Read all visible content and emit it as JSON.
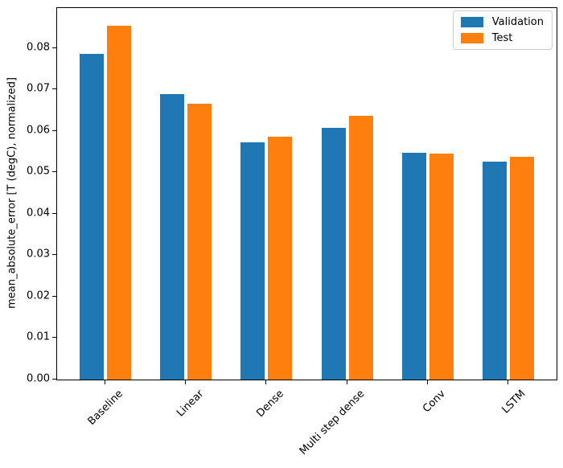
{
  "chart_data": {
    "type": "bar",
    "categories": [
      "Baseline",
      "Linear",
      "Dense",
      "Multi step dense",
      "Conv",
      "LSTM"
    ],
    "series": [
      {
        "name": "Validation",
        "color": "#1f77b4",
        "values": [
          0.0785,
          0.0688,
          0.0573,
          0.0607,
          0.0546,
          0.0525
        ]
      },
      {
        "name": "Test",
        "color": "#ff7f0e",
        "values": [
          0.0853,
          0.0665,
          0.0585,
          0.0636,
          0.0545,
          0.0537
        ]
      }
    ],
    "ylabel": "mean_absolute_error [T (degC), normalized]",
    "ylim": [
      0,
      0.0896
    ],
    "xlim": [
      -0.6,
      5.6
    ],
    "ytick_values": [
      0.0,
      0.01,
      0.02,
      0.03,
      0.04,
      0.05,
      0.06,
      0.07,
      0.08
    ],
    "ytick_labels": [
      "0.00",
      "0.01",
      "0.02",
      "0.03",
      "0.04",
      "0.05",
      "0.06",
      "0.07",
      "0.08"
    ],
    "bar_width": 0.3,
    "bar_offset": 0.17,
    "xtick_rotation": 45,
    "grid": false,
    "legend_position": "upper right"
  }
}
